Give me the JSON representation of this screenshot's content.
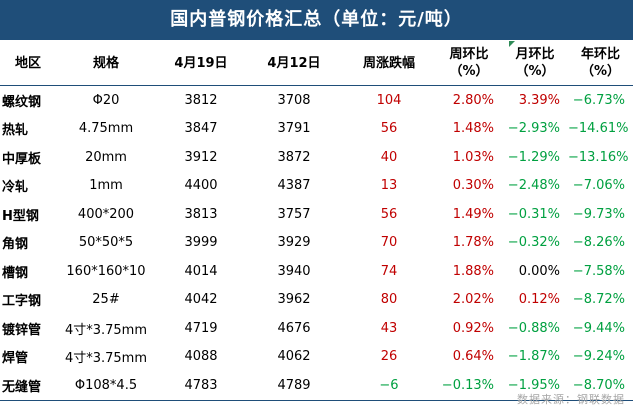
{
  "title": "国内普钢价格汇总（单位：元/吨）",
  "headers": [
    "地区",
    "规格",
    "4月19日",
    "4月12日",
    "周涨跌幅",
    "周环比\n（%）",
    "月环比\n（%）",
    "年环比\n（%）"
  ],
  "rows": [
    {
      "region": "螺纹钢",
      "spec": "Φ20",
      "apr19": "3812",
      "apr12": "3708",
      "chg": "104",
      "wow": "2.80%",
      "mom": "3.39%",
      "yoy": "−6.73%"
    },
    {
      "region": "热轧",
      "spec": "4.75mm",
      "apr19": "3847",
      "apr12": "3791",
      "chg": "56",
      "wow": "1.48%",
      "mom": "−2.93%",
      "yoy": "−14.61%"
    },
    {
      "region": "中厚板",
      "spec": "20mm",
      "apr19": "3912",
      "apr12": "3872",
      "chg": "40",
      "wow": "1.03%",
      "mom": "−1.29%",
      "yoy": "−13.16%"
    },
    {
      "region": "冷轧",
      "spec": "1mm",
      "apr19": "4400",
      "apr12": "4387",
      "chg": "13",
      "wow": "0.30%",
      "mom": "−2.48%",
      "yoy": "−7.06%"
    },
    {
      "region": "H型钢",
      "spec": "400*200",
      "apr19": "3813",
      "apr12": "3757",
      "chg": "56",
      "wow": "1.49%",
      "mom": "−0.31%",
      "yoy": "−9.73%"
    },
    {
      "region": "角钢",
      "spec": "50*50*5",
      "apr19": "3999",
      "apr12": "3929",
      "chg": "70",
      "wow": "1.78%",
      "mom": "−0.32%",
      "yoy": "−8.26%"
    },
    {
      "region": "槽钢",
      "spec": "160*160*10",
      "apr19": "4014",
      "apr12": "3940",
      "chg": "74",
      "wow": "1.88%",
      "mom": "0.00%",
      "yoy": "−7.58%"
    },
    {
      "region": "工字钢",
      "spec": "25#",
      "apr19": "4042",
      "apr12": "3962",
      "chg": "80",
      "wow": "2.02%",
      "mom": "0.12%",
      "yoy": "−8.72%"
    },
    {
      "region": "镀锌管",
      "spec": "4寸*3.75mm",
      "apr19": "4719",
      "apr12": "4676",
      "chg": "43",
      "wow": "0.92%",
      "mom": "−0.88%",
      "yoy": "−9.44%"
    },
    {
      "region": "焊管",
      "spec": "4寸*3.75mm",
      "apr19": "4088",
      "apr12": "4062",
      "chg": "26",
      "wow": "0.64%",
      "mom": "−1.87%",
      "yoy": "−9.24%"
    },
    {
      "region": "无缝管",
      "spec": "Φ108*4.5",
      "apr19": "4783",
      "apr12": "4789",
      "chg": "−6",
      "wow": "−0.13%",
      "mom": "−1.95%",
      "yoy": "−8.70%"
    }
  ],
  "source": "数据来源：钢联数据",
  "colors": {
    "header_bg": "#1f4e79",
    "up": "#c00000",
    "down": "#00a040"
  }
}
